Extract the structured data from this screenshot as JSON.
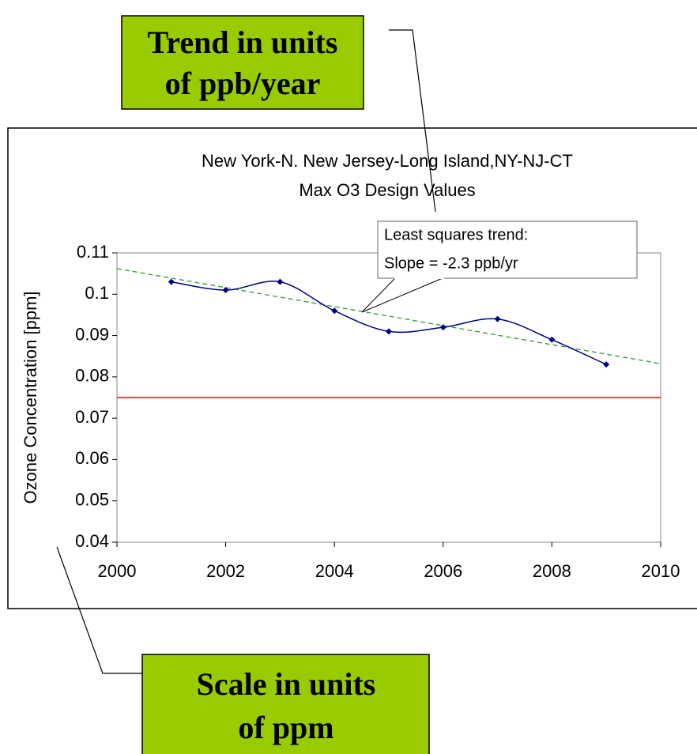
{
  "chart_data": {
    "type": "line",
    "title": [
      "New York-N. New Jersey-Long Island,NY-NJ-CT",
      "Max O3 Design Values"
    ],
    "y_label": "Ozone Concentration [ppm]",
    "x": [
      2001,
      2002,
      2003,
      2004,
      2005,
      2006,
      2007,
      2008,
      2009
    ],
    "series": [
      {
        "color": "#000080",
        "values": [
          0.103,
          0.101,
          0.103,
          0.096,
          0.091,
          0.092,
          0.094,
          0.089,
          0.083
        ]
      }
    ],
    "trend": {
      "x": [
        2000,
        2010
      ],
      "values": [
        0.1062,
        0.0832
      ],
      "color": "#339933"
    },
    "reference_line": {
      "value": 0.075,
      "color": "#ff0000"
    },
    "xlim": [
      2000,
      2010
    ],
    "xticks": [
      2000,
      2002,
      2004,
      2006,
      2008,
      2010
    ],
    "ylim": [
      0.04,
      0.11
    ],
    "yticks": [
      0.04,
      0.05,
      0.06,
      0.07,
      0.08,
      0.09,
      0.1,
      0.11
    ],
    "callout": {
      "lines": [
        "Least squares trend:",
        "Slope = -2.3 ppb/yr"
      ],
      "color": "#99cc00"
    }
  },
  "annotations": [
    {
      "lines": [
        "Trend in units",
        "of ppb/year"
      ]
    },
    {
      "lines": [
        "Scale in units",
        "of ppm"
      ]
    }
  ]
}
